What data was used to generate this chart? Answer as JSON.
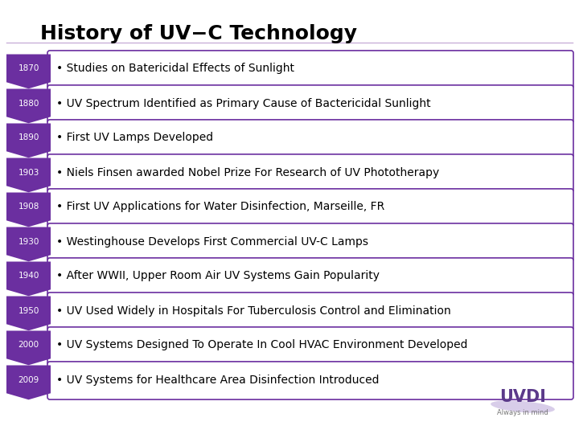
{
  "title": "History of UV−C Technology",
  "background_color": "#ffffff",
  "entries": [
    {
      "year": "1870",
      "text": "• Studies on Batericidal Effects of Sunlight"
    },
    {
      "year": "1880",
      "text": "• UV Spectrum Identified as Primary Cause of Bactericidal Sunlight"
    },
    {
      "year": "1890",
      "text": "• First UV Lamps Developed"
    },
    {
      "year": "1903",
      "text": "• Niels Finsen awarded Nobel Prize For Research of UV Phototherapy"
    },
    {
      "year": "1908",
      "text": "• First UV Applications for Water Disinfection, Marseille, FR"
    },
    {
      "year": "1930",
      "text": "• Westinghouse Develops First Commercial UV-C Lamps"
    },
    {
      "year": "1940",
      "text": "• After WWII, Upper Room Air UV Systems Gain Popularity"
    },
    {
      "year": "1950",
      "text": "• UV Used Widely in Hospitals For Tuberculosis Control and Elimination"
    },
    {
      "year": "2000",
      "text": "• UV Systems Designed To Operate In Cool HVAC Environment Developed"
    },
    {
      "year": "2009",
      "text": "• UV Systems for Healthcare Area Disinfection Introduced"
    }
  ],
  "arrow_color": "#6b2fa0",
  "box_fill": "#ffffff",
  "box_edge": "#6b2fa0",
  "year_text_color": "#ffffff",
  "entry_text_color": "#000000",
  "title_color": "#000000",
  "title_fontsize": 18,
  "entry_fontsize": 10,
  "year_fontsize": 7.5,
  "title_line_color": "#c8b0d8",
  "uvdi_color": "#5b3a8a",
  "uvdi_sub_color": "#777777"
}
